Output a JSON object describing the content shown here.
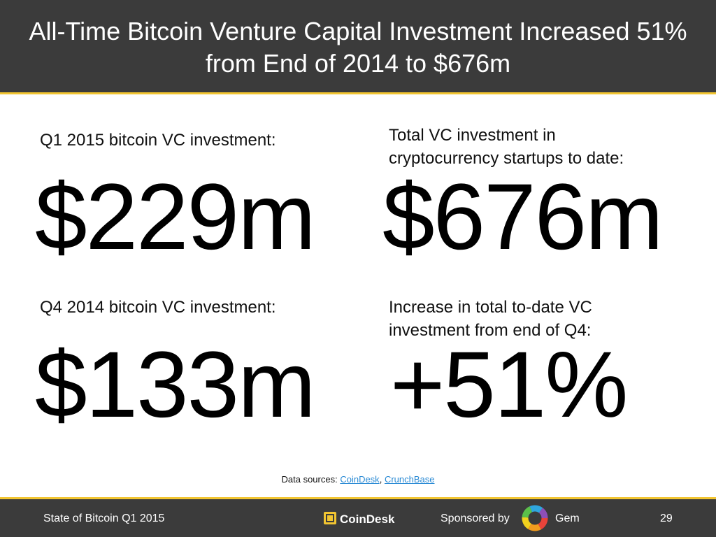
{
  "header": {
    "title": "All-Time Bitcoin Venture Capital Investment Increased 51% from End of 2014 to $676m"
  },
  "stats": [
    {
      "label": "Q1 2015 bitcoin VC investment:",
      "value": "$229m"
    },
    {
      "label": "Total VC investment in cryptocurrency startups to date:",
      "value": "$676m"
    },
    {
      "label": "Q4 2014 bitcoin VC investment:",
      "value": "$133m"
    },
    {
      "label": "Increase in total to-date VC investment from end of Q4:",
      "value": "+51%"
    }
  ],
  "sources": {
    "label": "Data sources:",
    "links": [
      "CoinDesk",
      "CrunchBase"
    ],
    "separator": ","
  },
  "footer": {
    "left": "State of Bitcoin Q1 2015",
    "logo": "CoinDesk",
    "sponsored": "Sponsored by",
    "sponsor": "Gem",
    "page": "29"
  }
}
